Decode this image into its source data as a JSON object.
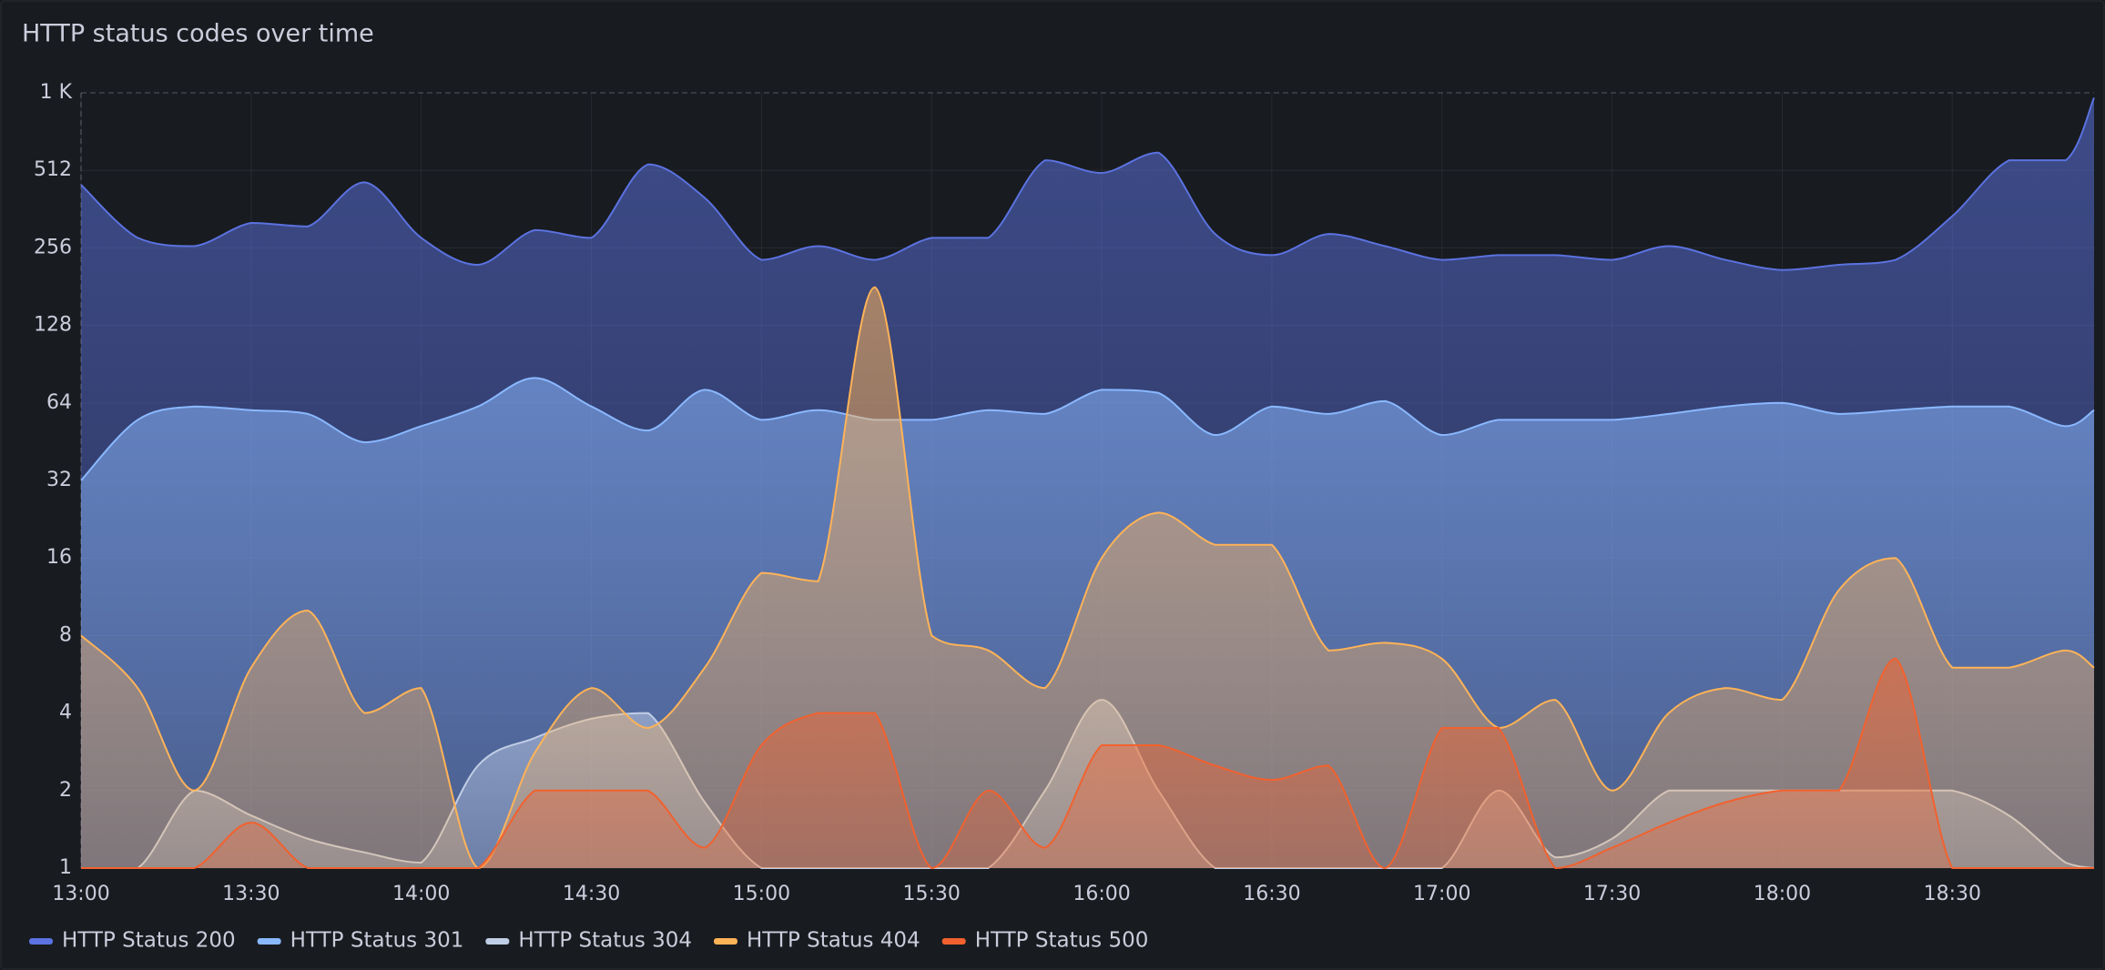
{
  "chart_data": {
    "type": "line",
    "title": "HTTP status codes over time",
    "x": [
      "13:00",
      "13:10",
      "13:20",
      "13:30",
      "13:40",
      "13:50",
      "14:00",
      "14:10",
      "14:20",
      "14:30",
      "14:40",
      "14:50",
      "15:00",
      "15:10",
      "15:20",
      "15:30",
      "15:40",
      "15:50",
      "16:00",
      "16:10",
      "16:20",
      "16:30",
      "16:40",
      "16:50",
      "17:00",
      "17:10",
      "17:20",
      "17:30",
      "17:40",
      "17:50",
      "18:00",
      "18:10",
      "18:20",
      "18:30",
      "18:40",
      "18:50",
      "18:55"
    ],
    "xlim": [
      "13:00",
      "18:55"
    ],
    "xticks": [
      "13:00",
      "13:30",
      "14:00",
      "14:30",
      "15:00",
      "15:30",
      "16:00",
      "16:30",
      "17:00",
      "17:30",
      "18:00",
      "18:30"
    ],
    "ylim": [
      1,
      1024
    ],
    "log_scale": 2,
    "grid": true,
    "yticks": [
      1,
      2,
      4,
      8,
      16,
      32,
      64,
      128,
      256,
      512,
      {
        "value": 1024,
        "label": "1 K"
      }
    ],
    "legend": "bottom",
    "series": [
      {
        "name": "HTTP Status 200",
        "color": "#5b72e0",
        "values": [
          450,
          280,
          260,
          320,
          310,
          460,
          280,
          220,
          300,
          280,
          540,
          400,
          230,
          260,
          230,
          280,
          280,
          560,
          500,
          600,
          290,
          240,
          290,
          260,
          230,
          240,
          240,
          230,
          260,
          230,
          210,
          220,
          230,
          340,
          560,
          560,
          980
        ]
      },
      {
        "name": "HTTP Status 301",
        "color": "#8ab8ff",
        "values": [
          32,
          55,
          62,
          60,
          58,
          45,
          52,
          62,
          80,
          62,
          50,
          72,
          55,
          60,
          55,
          55,
          60,
          58,
          72,
          70,
          48,
          62,
          58,
          65,
          48,
          55,
          55,
          55,
          58,
          62,
          64,
          58,
          60,
          62,
          62,
          52,
          60
        ]
      },
      {
        "name": "HTTP Status 304",
        "color": "#c0cde6",
        "values": [
          1,
          1,
          2,
          1.6,
          1.3,
          1.15,
          1.05,
          2.5,
          3.2,
          3.8,
          4,
          1.8,
          1,
          1,
          1,
          1,
          1,
          2,
          4.5,
          2,
          1,
          1,
          1,
          1,
          1,
          2,
          1.1,
          1.3,
          2,
          2,
          2,
          2,
          2,
          2,
          1.6,
          1.05,
          1
        ]
      },
      {
        "name": "HTTP Status 404",
        "color": "#ffb357",
        "values": [
          8,
          5,
          2,
          6,
          10,
          4,
          5,
          1,
          2.8,
          5,
          3.5,
          6,
          14,
          13,
          180,
          8,
          7,
          5,
          16,
          24,
          18,
          18,
          7,
          7.5,
          6.5,
          3.5,
          4.5,
          2,
          4,
          5,
          4.5,
          12,
          16,
          6,
          6,
          7,
          6
        ]
      },
      {
        "name": "HTTP Status 500",
        "color": "#f2612e",
        "values": [
          1,
          1,
          1,
          1.5,
          1,
          1,
          1,
          1,
          2,
          2,
          2,
          1.2,
          3,
          4,
          4,
          1,
          2,
          1.2,
          3,
          3,
          2.5,
          2.2,
          2.5,
          1,
          3.5,
          3.5,
          1,
          1.2,
          1.5,
          1.8,
          2,
          2,
          6.5,
          1,
          1,
          1,
          1
        ]
      }
    ]
  }
}
